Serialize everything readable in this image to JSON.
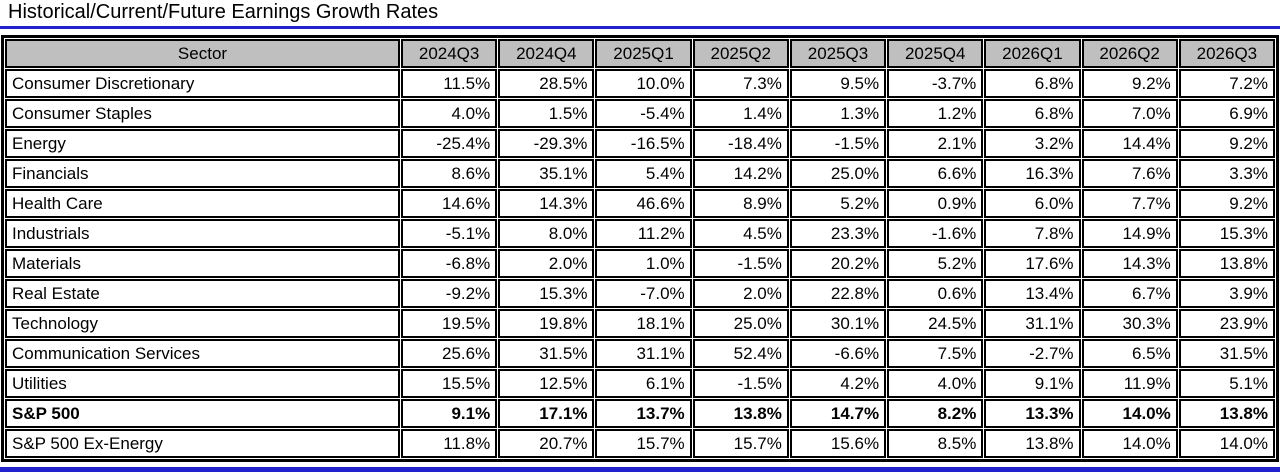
{
  "title": "Historical/Current/Future Earnings Growth Rates",
  "colors": {
    "accent_blue": "#2222CC",
    "header_bg": "#BFBFBF",
    "grid_black": "#000000",
    "page_bg": "#FFFFFF"
  },
  "table": {
    "sector_header": "Sector",
    "quarters": [
      "2024Q3",
      "2024Q4",
      "2025Q1",
      "2025Q2",
      "2025Q3",
      "2025Q4",
      "2026Q1",
      "2026Q2",
      "2026Q3"
    ],
    "bold_rows": [
      "S&P 500"
    ],
    "value_suffix": "%"
  },
  "chart_data": {
    "type": "table",
    "title": "Historical/Current/Future Earnings Growth Rates",
    "columns": [
      "Sector",
      "2024Q3",
      "2024Q4",
      "2025Q1",
      "2025Q2",
      "2025Q3",
      "2025Q4",
      "2026Q1",
      "2026Q2",
      "2026Q3"
    ],
    "units": "percent",
    "series": [
      {
        "name": "Consumer Discretionary",
        "values": [
          11.5,
          28.5,
          10.0,
          7.3,
          9.5,
          -3.7,
          6.8,
          9.2,
          7.2
        ]
      },
      {
        "name": "Consumer Staples",
        "values": [
          4.0,
          1.5,
          -5.4,
          1.4,
          1.3,
          1.2,
          6.8,
          7.0,
          6.9
        ]
      },
      {
        "name": "Energy",
        "values": [
          -25.4,
          -29.3,
          -16.5,
          -18.4,
          -1.5,
          2.1,
          3.2,
          14.4,
          9.2
        ]
      },
      {
        "name": "Financials",
        "values": [
          8.6,
          35.1,
          5.4,
          14.2,
          25.0,
          6.6,
          16.3,
          7.6,
          3.3
        ]
      },
      {
        "name": "Health Care",
        "values": [
          14.6,
          14.3,
          46.6,
          8.9,
          5.2,
          0.9,
          6.0,
          7.7,
          9.2
        ]
      },
      {
        "name": "Industrials",
        "values": [
          -5.1,
          8.0,
          11.2,
          4.5,
          23.3,
          -1.6,
          7.8,
          14.9,
          15.3
        ]
      },
      {
        "name": "Materials",
        "values": [
          -6.8,
          2.0,
          1.0,
          -1.5,
          20.2,
          5.2,
          17.6,
          14.3,
          13.8
        ]
      },
      {
        "name": "Real Estate",
        "values": [
          -9.2,
          15.3,
          -7.0,
          2.0,
          22.8,
          0.6,
          13.4,
          6.7,
          3.9
        ]
      },
      {
        "name": "Technology",
        "values": [
          19.5,
          19.8,
          18.1,
          25.0,
          30.1,
          24.5,
          31.1,
          30.3,
          23.9
        ]
      },
      {
        "name": "Communication Services",
        "values": [
          25.6,
          31.5,
          31.1,
          52.4,
          -6.6,
          7.5,
          -2.7,
          6.5,
          31.5
        ]
      },
      {
        "name": "Utilities",
        "values": [
          15.5,
          12.5,
          6.1,
          -1.5,
          4.2,
          4.0,
          9.1,
          11.9,
          5.1
        ]
      },
      {
        "name": "S&P 500",
        "values": [
          9.1,
          17.1,
          13.7,
          13.8,
          14.7,
          8.2,
          13.3,
          14.0,
          13.8
        ]
      },
      {
        "name": "S&P 500 Ex-Energy",
        "values": [
          11.8,
          20.7,
          15.7,
          15.7,
          15.6,
          8.5,
          13.8,
          14.0,
          14.0
        ]
      }
    ]
  }
}
